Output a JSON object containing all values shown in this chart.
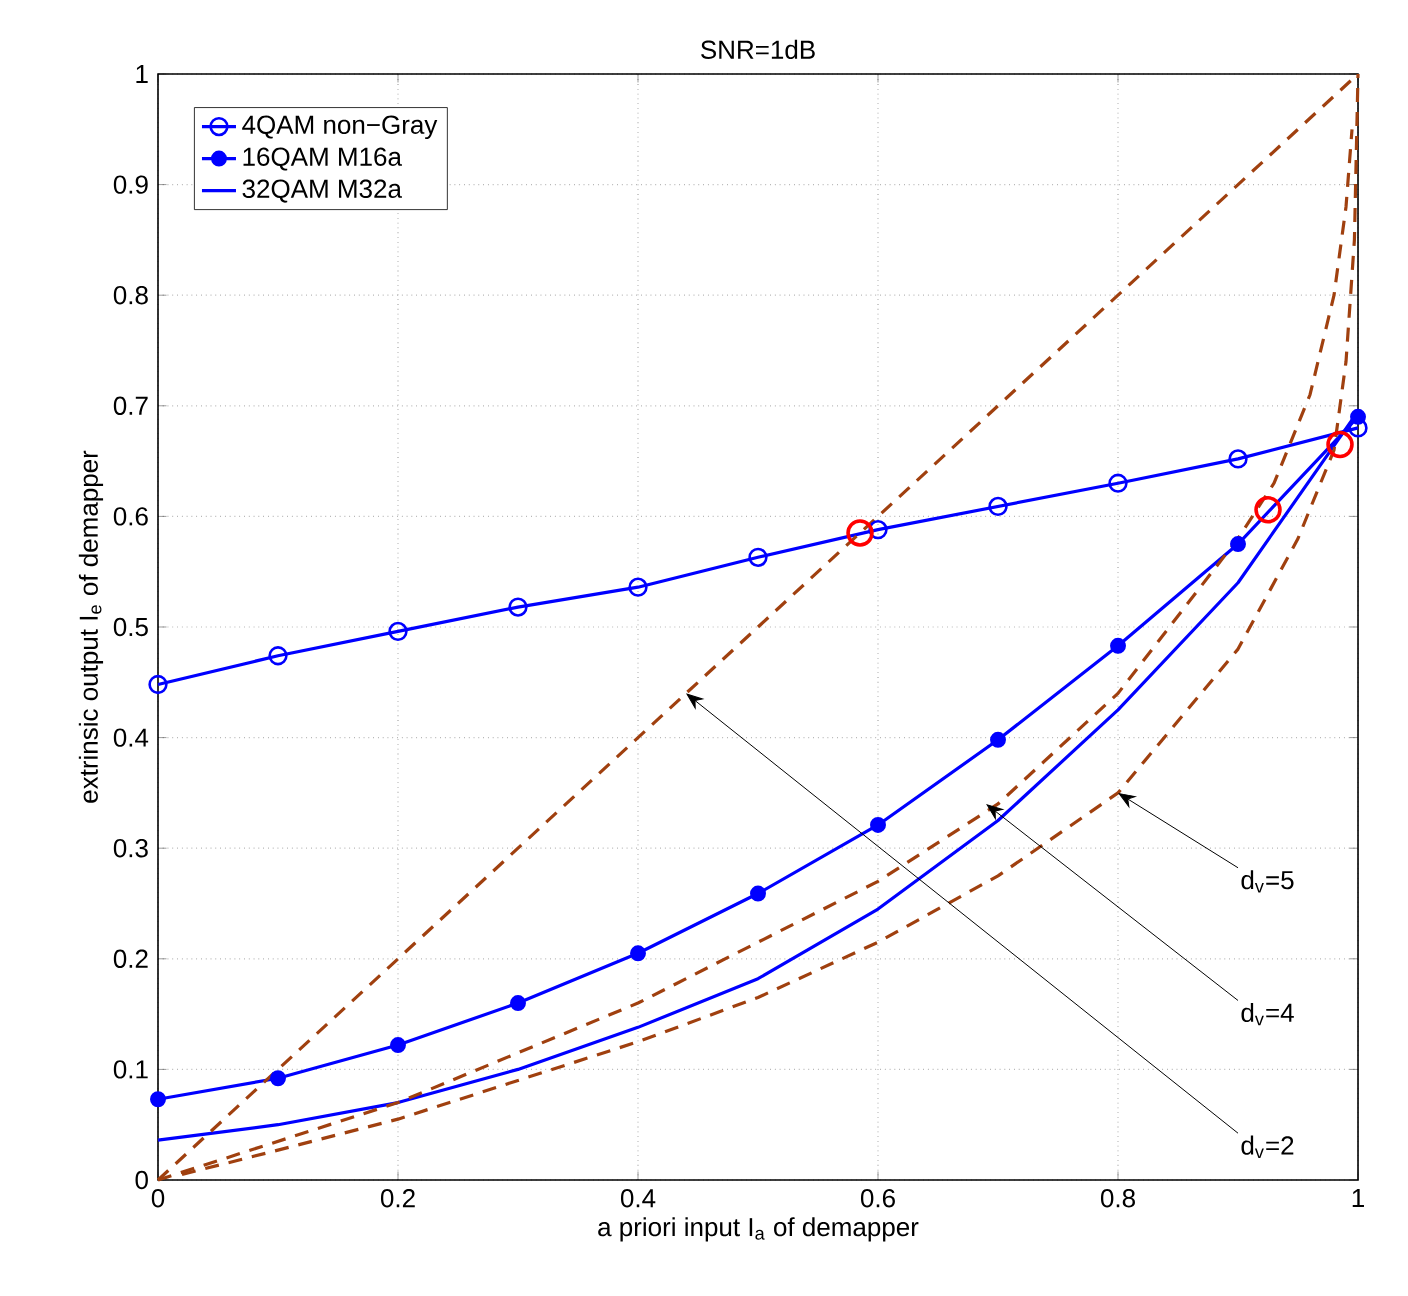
{
  "chart_data": {
    "type": "line",
    "title": "SNR=1dB",
    "xlabel": "a priori input I$_{a}$ of demapper",
    "ylabel": "extrinsic output I$_{e}$ of demapper",
    "xlim": [
      0,
      1
    ],
    "ylim": [
      0,
      1
    ],
    "xticks": [
      0,
      0.2,
      0.4,
      0.6,
      0.8,
      1
    ],
    "yticks": [
      0,
      0.1,
      0.2,
      0.3,
      0.4,
      0.5,
      0.6,
      0.7,
      0.8,
      0.9,
      1
    ],
    "grid": true,
    "legend": "top left",
    "series": [
      {
        "name": "4QAM non−Gray",
        "color": "#0000ff",
        "marker": "circle",
        "line_style": "solid",
        "x": [
          0,
          0.1,
          0.2,
          0.3,
          0.4,
          0.5,
          0.6,
          0.7,
          0.8,
          0.9,
          1
        ],
        "values": [
          0.448,
          0.474,
          0.496,
          0.518,
          0.536,
          0.563,
          0.588,
          0.609,
          0.63,
          0.652,
          0.68
        ]
      },
      {
        "name": "16QAM M16a",
        "color": "#0000ff",
        "marker": "dot",
        "line_style": "solid",
        "x": [
          0,
          0.1,
          0.2,
          0.3,
          0.4,
          0.5,
          0.6,
          0.7,
          0.8,
          0.9,
          1
        ],
        "values": [
          0.073,
          0.092,
          0.122,
          0.16,
          0.205,
          0.259,
          0.321,
          0.398,
          0.483,
          0.575,
          0.69
        ]
      },
      {
        "name": "32QAM M32a",
        "color": "#0000ff",
        "marker": "none",
        "line_style": "solid",
        "x": [
          0,
          0.1,
          0.2,
          0.3,
          0.4,
          0.5,
          0.6,
          0.7,
          0.8,
          0.9,
          1
        ],
        "values": [
          0.036,
          0.05,
          0.07,
          0.1,
          0.138,
          0.182,
          0.245,
          0.325,
          0.425,
          0.54,
          0.695
        ]
      },
      {
        "color": "#a0400f",
        "marker": "none",
        "line_style": "dashed",
        "x": [
          0,
          0.2,
          0.4,
          0.6,
          0.8,
          1
        ],
        "values": [
          0,
          0.2,
          0.4,
          0.6,
          0.8,
          1
        ]
      },
      {
        "color": "#a0400f",
        "marker": "none",
        "line_style": "dashed",
        "x": [
          0,
          0.1,
          0.2,
          0.3,
          0.4,
          0.5,
          0.6,
          0.7,
          0.8,
          0.9,
          0.93,
          0.96,
          0.98,
          0.99,
          0.995
        ],
        "values": [
          0,
          0.035,
          0.07,
          0.115,
          0.16,
          0.215,
          0.27,
          0.34,
          0.44,
          0.58,
          0.63,
          0.71,
          0.8,
          0.88,
          0.95
        ]
      },
      {
        "color": "#a0400f",
        "marker": "none",
        "line_style": "dashed",
        "x": [
          0.02,
          0.1,
          0.2,
          0.3,
          0.4,
          0.5,
          0.6,
          0.7,
          0.8,
          0.9,
          0.95,
          0.98,
          0.99,
          0.997,
          1
        ],
        "values": [
          0.005,
          0.027,
          0.055,
          0.09,
          0.125,
          0.165,
          0.215,
          0.275,
          0.35,
          0.48,
          0.58,
          0.66,
          0.74,
          0.85,
          1
        ]
      },
      {
        "type": "scatter",
        "color": "#ff0000",
        "marker": "circle",
        "x": [
          0.585,
          0.925,
          0.985
        ],
        "values": [
          0.585,
          0.606,
          0.665
        ]
      }
    ],
    "annotations": [
      {
        "text": "d$_{v}$=2",
        "x": 0.44,
        "y": 0.44
      },
      {
        "text": "d$_{v}$=4",
        "x": 0.69,
        "y": 0.34
      },
      {
        "text": "d$_{v}$=5",
        "x": 0.8,
        "y": 0.35
      }
    ]
  }
}
